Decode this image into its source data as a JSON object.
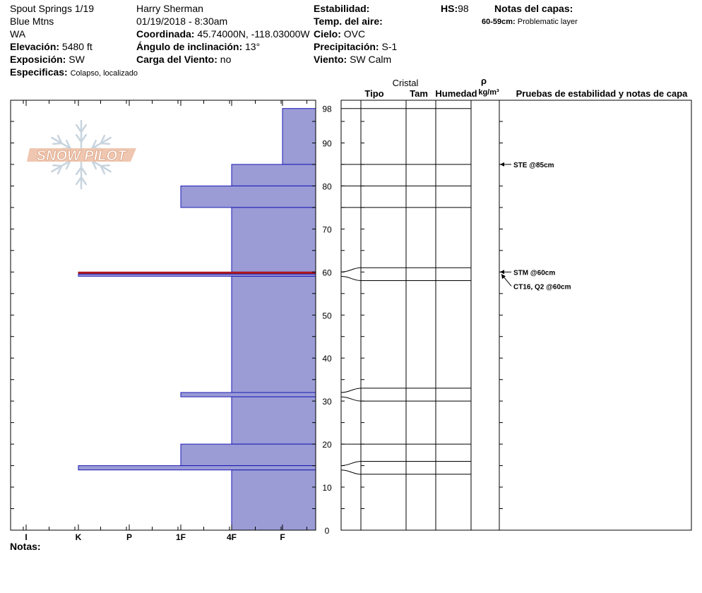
{
  "header": {
    "location": "Spout Springs 1/19",
    "range": "Blue Mtns",
    "state": "WA",
    "elevation_label": "Elevación:",
    "elevation": "5480 ft",
    "aspect_label": "Exposición:",
    "aspect": "SW",
    "specifics_label": "Especificas:",
    "specifics": "Colapso, localizado",
    "observer": "Harry Sherman",
    "datetime": "01/19/2018 - 8:30am",
    "coord_label": "Coordinada:",
    "coord": "45.74000N, -118.03000W",
    "slope_label": "Ángulo de inclinación:",
    "slope": "13°",
    "wind_load_label": "Carga del Viento:",
    "wind_load": "no",
    "stability_label": "Estabilidad:",
    "stability": "",
    "air_temp_label": "Temp. del aire:",
    "air_temp": "",
    "sky_label": "Cielo:",
    "sky": "OVC",
    "precip_label": "Precipitación:",
    "precip": "S-1",
    "wind_label": "Viento:",
    "wind": "SW Calm",
    "hs_label": "HS:",
    "hs": "98",
    "layer_notes_title": "Notas del capas:",
    "layer_note_range": "60-59cm:",
    "layer_note_text": "Problematic layer",
    "notes_label": "Notas:"
  },
  "logo_text": "SNOW PILOT",
  "columns": {
    "cristal": "Cristal",
    "tipo": "Tipo",
    "tam": "Tam",
    "humedad": "Humedad",
    "rho": "ρ",
    "density_unit": "kg/m³",
    "tests": "Pruebas de estabilidad y notas de capa"
  },
  "chart_data": {
    "type": "bar",
    "orientation": "horizontal",
    "y_axis": {
      "min": 0,
      "max": 98,
      "ticks": [
        0,
        10,
        20,
        30,
        40,
        50,
        60,
        70,
        80,
        90,
        98
      ]
    },
    "x_axis": {
      "categories": [
        "I",
        "K",
        "P",
        "1F",
        "4F",
        "F"
      ]
    },
    "hardness_layers": [
      {
        "top": 98,
        "bottom": 85,
        "hardness": "F"
      },
      {
        "top": 85,
        "bottom": 80,
        "hardness": "4F"
      },
      {
        "top": 80,
        "bottom": 75,
        "hardness": "1F"
      },
      {
        "top": 75,
        "bottom": 60,
        "hardness": "4F"
      },
      {
        "top": 60,
        "bottom": 59.5,
        "hardness": "K",
        "highlight": true
      },
      {
        "top": 59.5,
        "bottom": 59,
        "hardness": "K"
      },
      {
        "top": 59,
        "bottom": 32,
        "hardness": "4F"
      },
      {
        "top": 32,
        "bottom": 31,
        "hardness": "1F"
      },
      {
        "top": 31,
        "bottom": 20,
        "hardness": "4F"
      },
      {
        "top": 20,
        "bottom": 15,
        "hardness": "1F"
      },
      {
        "top": 15,
        "bottom": 14,
        "hardness": "K"
      },
      {
        "top": 14,
        "bottom": 0,
        "hardness": "4F"
      }
    ],
    "layer_boundaries": [
      98,
      85,
      80,
      75,
      61,
      58,
      33,
      30,
      20,
      16,
      13
    ],
    "layer_lines": [
      {
        "left": 98,
        "right": 98
      },
      {
        "left": 85,
        "right": 85
      },
      {
        "left": 80,
        "right": 80
      },
      {
        "left": 75,
        "right": 75
      },
      {
        "left": 60,
        "right": 61
      },
      {
        "left": 59,
        "right": 58
      },
      {
        "left": 32,
        "right": 33
      },
      {
        "left": 31,
        "right": 30
      },
      {
        "left": 20,
        "right": 20
      },
      {
        "left": 15,
        "right": 16
      },
      {
        "left": 14,
        "right": 13
      }
    ],
    "tests": [
      {
        "depth": 85,
        "label": "STE @85cm"
      },
      {
        "depth": 60,
        "label": "STM @60cm"
      },
      {
        "depth": 60,
        "label": "CT16, Q2 @60cm",
        "offset": true
      }
    ],
    "colors": {
      "fill": "#9b9bd6",
      "edge": "#1a1ab4",
      "highlight": "#b01818"
    }
  }
}
